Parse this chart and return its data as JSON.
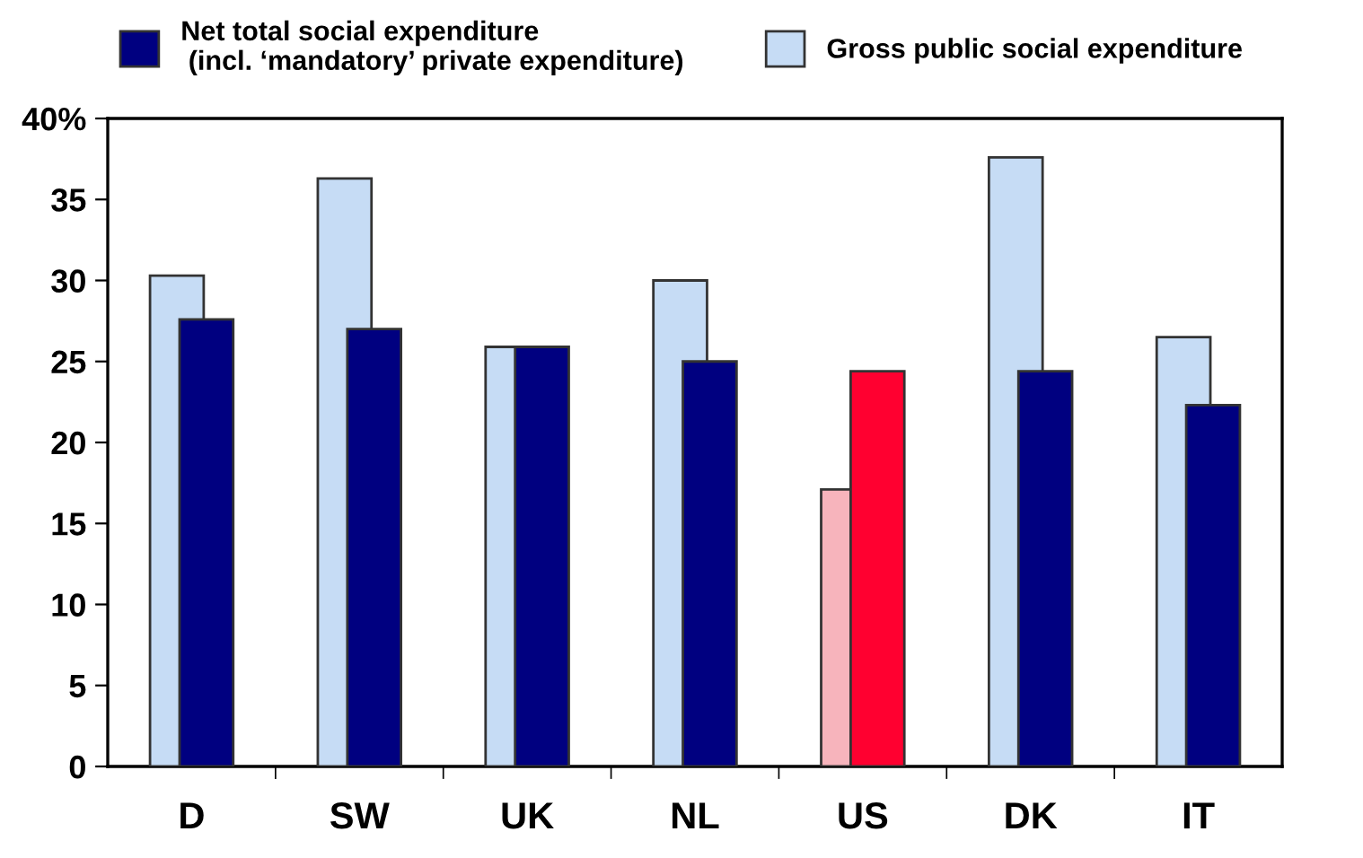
{
  "chart_data": {
    "type": "bar",
    "categories": [
      "D",
      "SW",
      "UK",
      "NL",
      "US",
      "DK",
      "IT"
    ],
    "series": [
      {
        "name": "Net total social expenditure\n (incl. ‘mandatory’ private expenditure)",
        "color": "#000080",
        "colors": [
          "#000080",
          "#000080",
          "#000080",
          "#000080",
          "#ff0030",
          "#000080",
          "#000080"
        ],
        "values": [
          27.6,
          27.0,
          25.9,
          25.0,
          24.4,
          24.4,
          22.3
        ]
      },
      {
        "name": "Gross public social expenditure",
        "color": "#c6dcf5",
        "colors": [
          "#c6dcf5",
          "#c6dcf5",
          "#c6dcf5",
          "#c6dcf5",
          "#f7b4bc",
          "#c6dcf5",
          "#c6dcf5"
        ],
        "values": [
          30.3,
          36.3,
          25.9,
          30.0,
          17.1,
          37.6,
          26.5
        ]
      }
    ],
    "ylim": [
      0,
      40
    ],
    "yticks": [
      0,
      5,
      10,
      15,
      20,
      25,
      30,
      35,
      {
        "value": 40,
        "label": "40%"
      }
    ],
    "legend": "top",
    "grid": false
  }
}
